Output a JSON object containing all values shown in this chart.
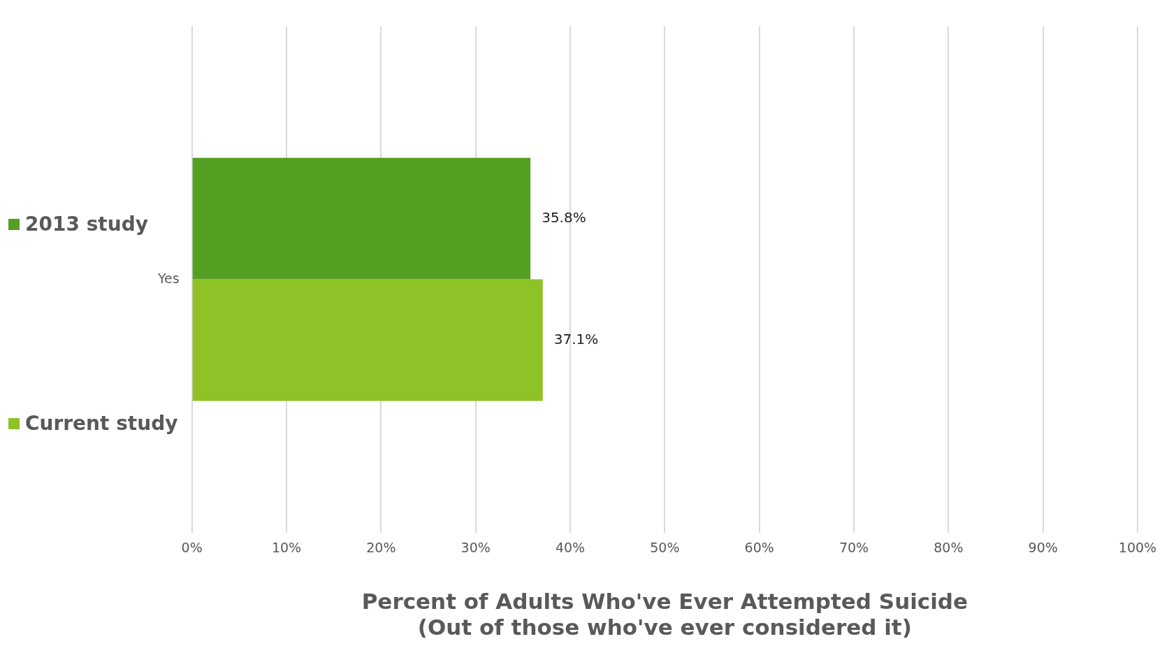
{
  "chart_data": {
    "type": "bar",
    "orientation": "horizontal",
    "xlabel": "Percent of Adults Who've Ever Attempted Suicide\n(Out of those who've ever considered it)",
    "categories": [
      "Yes"
    ],
    "series": [
      {
        "name": "2013 study",
        "color": "#55a023",
        "values": [
          35.8
        ],
        "value_labels": [
          "35.8%"
        ]
      },
      {
        "name": "Current study",
        "color": "#8fc226",
        "values": [
          37.1
        ],
        "value_labels": [
          "37.1%"
        ]
      }
    ],
    "xlim": [
      0,
      100
    ],
    "xticks": [
      {
        "value": 0,
        "label": "0%"
      },
      {
        "value": 10,
        "label": "10%"
      },
      {
        "value": 20,
        "label": "20%"
      },
      {
        "value": 30,
        "label": "30%"
      },
      {
        "value": 40,
        "label": "40%"
      },
      {
        "value": 50,
        "label": "50%"
      },
      {
        "value": 60,
        "label": "60%"
      },
      {
        "value": 70,
        "label": "70%"
      },
      {
        "value": 80,
        "label": "80%"
      },
      {
        "value": 90,
        "label": "90%"
      },
      {
        "value": 100,
        "label": "100%"
      }
    ],
    "grid": "x",
    "legend": "left"
  }
}
